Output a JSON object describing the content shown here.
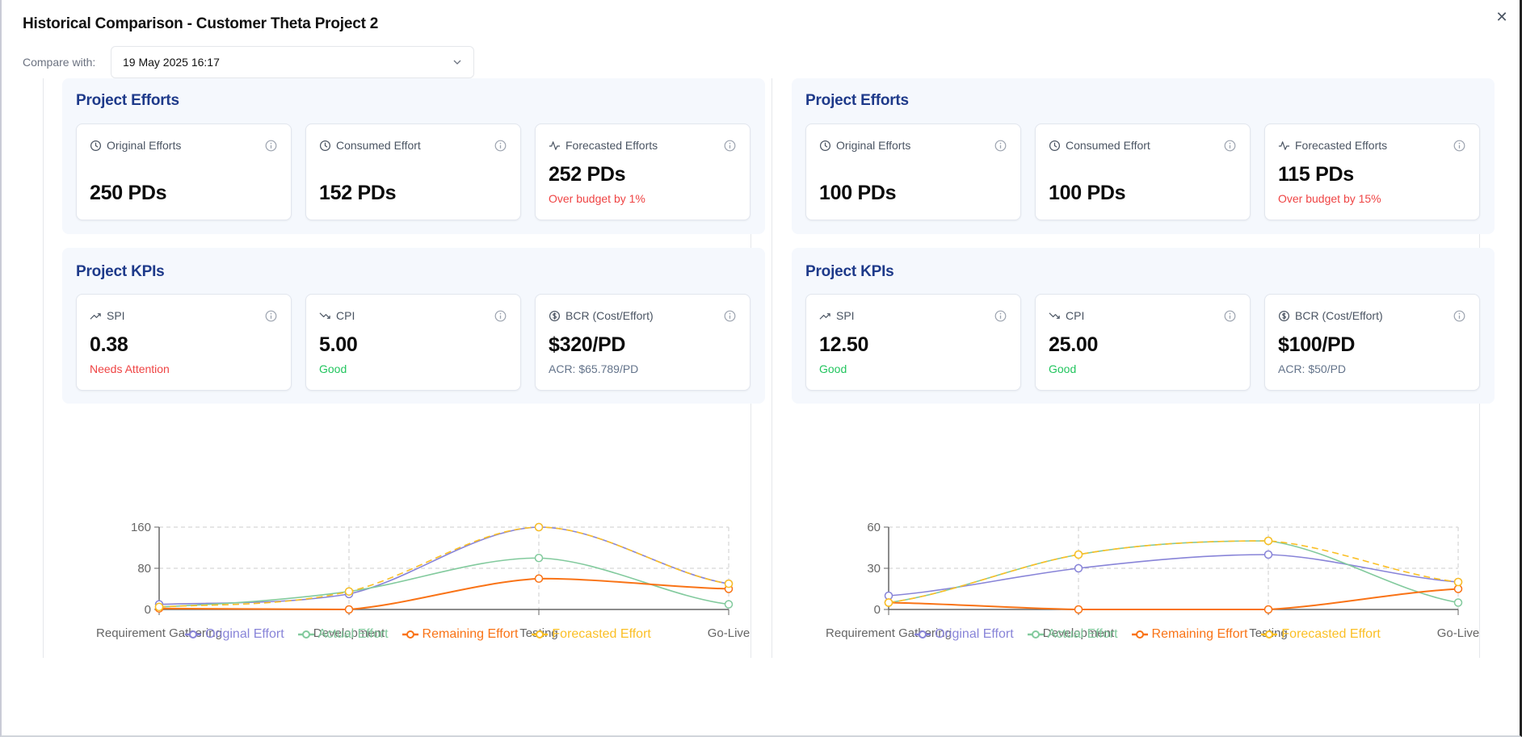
{
  "dialog": {
    "title": "Historical Comparison - Customer Theta Project 2",
    "close_icon": "close-icon",
    "compare_label": "Compare with:",
    "compare_value": "19 May 2025 16:17"
  },
  "colors": {
    "original": "#8884d8",
    "actual": "#82ca9d",
    "remaining": "#f97316",
    "forecasted": "#fbbf24",
    "section_title": "#1e3a8a",
    "danger": "#ef4444",
    "success": "#22c55e"
  },
  "panels": [
    {
      "efforts": {
        "title": "Project Efforts",
        "cards": [
          {
            "icon": "clock-icon",
            "label": "Original Efforts",
            "value": "250 PDs",
            "sub": ""
          },
          {
            "icon": "clock-icon",
            "label": "Consumed Effort",
            "value": "152 PDs",
            "sub": ""
          },
          {
            "icon": "activity-icon",
            "label": "Forecasted Efforts",
            "value": "252 PDs",
            "sub": "Over budget by 1%"
          }
        ]
      },
      "kpis": {
        "title": "Project KPIs",
        "cards": [
          {
            "icon": "trending-up-icon",
            "label": "SPI",
            "value": "0.38",
            "sub": "Needs Attention",
            "status": "red"
          },
          {
            "icon": "trending-down-icon",
            "label": "CPI",
            "value": "5.00",
            "sub": "Good",
            "status": "green"
          },
          {
            "icon": "dollar-circle-icon",
            "label": "BCR (Cost/Effort)",
            "value": "$320/PD",
            "sub": "ACR: $65.789/PD",
            "status": "gray"
          }
        ]
      }
    },
    {
      "efforts": {
        "title": "Project Efforts",
        "cards": [
          {
            "icon": "clock-icon",
            "label": "Original Efforts",
            "value": "100 PDs",
            "sub": ""
          },
          {
            "icon": "clock-icon",
            "label": "Consumed Effort",
            "value": "100 PDs",
            "sub": ""
          },
          {
            "icon": "activity-icon",
            "label": "Forecasted Efforts",
            "value": "115 PDs",
            "sub": "Over budget by 15%"
          }
        ]
      },
      "kpis": {
        "title": "Project KPIs",
        "cards": [
          {
            "icon": "trending-up-icon",
            "label": "SPI",
            "value": "12.50",
            "sub": "Good",
            "status": "green"
          },
          {
            "icon": "trending-down-icon",
            "label": "CPI",
            "value": "25.00",
            "sub": "Good",
            "status": "green"
          },
          {
            "icon": "dollar-circle-icon",
            "label": "BCR (Cost/Effort)",
            "value": "$100/PD",
            "sub": "ACR: $50/PD",
            "status": "gray"
          }
        ]
      }
    }
  ],
  "chart_data": [
    {
      "type": "line",
      "categories": [
        "Requirement Gathering",
        "Development",
        "Testing",
        "Go-Live"
      ],
      "yticks": [
        0,
        80,
        160
      ],
      "ylim": [
        0,
        160
      ],
      "grid": true,
      "legend": "bottom",
      "series": [
        {
          "key": "original",
          "name": "Original Effort",
          "values": [
            10,
            30,
            160,
            50
          ],
          "dashed": false
        },
        {
          "key": "actual",
          "name": "Actual Effort",
          "values": [
            5,
            35,
            100,
            10
          ],
          "dashed": false
        },
        {
          "key": "remaining",
          "name": "Remaining Effort",
          "values": [
            2,
            0,
            60,
            40
          ],
          "dashed": false
        },
        {
          "key": "forecasted",
          "name": "Forecasted Effort",
          "values": [
            5,
            35,
            160,
            50
          ],
          "dashed": true
        }
      ]
    },
    {
      "type": "line",
      "categories": [
        "Requirement Gathering",
        "Development",
        "Testing",
        "Go-Live"
      ],
      "yticks": [
        0,
        30,
        60
      ],
      "ylim": [
        0,
        60
      ],
      "grid": true,
      "legend": "bottom",
      "series": [
        {
          "key": "original",
          "name": "Original Effort",
          "values": [
            10,
            30,
            40,
            20
          ],
          "dashed": false
        },
        {
          "key": "actual",
          "name": "Actual Effort",
          "values": [
            5,
            40,
            50,
            5
          ],
          "dashed": false
        },
        {
          "key": "remaining",
          "name": "Remaining Effort",
          "values": [
            5,
            0,
            0,
            15
          ],
          "dashed": false
        },
        {
          "key": "forecasted",
          "name": "Forecasted Effort",
          "values": [
            5,
            40,
            50,
            20
          ],
          "dashed": true
        }
      ]
    }
  ]
}
